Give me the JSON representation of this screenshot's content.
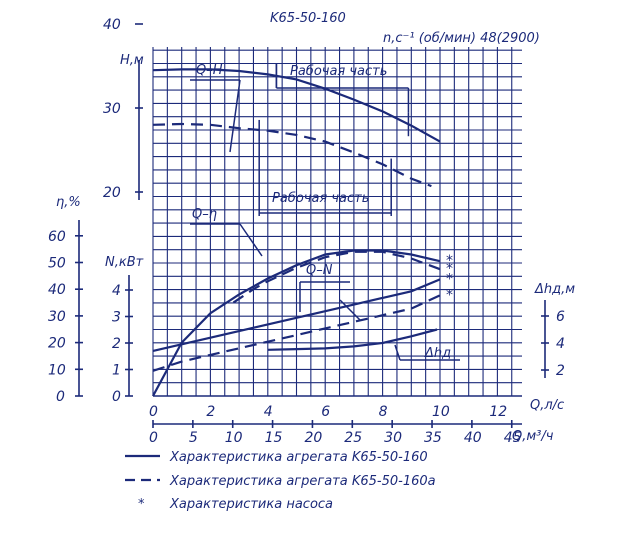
{
  "chart_data": {
    "type": "line",
    "title": "K65-50-160",
    "speed_label": "n,c⁻¹ (об/мин) 48(2900)",
    "color": "#1c2a7a",
    "grid": true,
    "x_axis_q_ls": {
      "label": "Q,л/с",
      "ticks": [
        "0",
        "2",
        "4",
        "6",
        "8",
        "10",
        "12"
      ],
      "range": [
        0,
        12.6
      ]
    },
    "x_axis_q_m3h": {
      "label": "Q,м³/ч",
      "ticks": [
        "0",
        "5",
        "10",
        "15",
        "20",
        "25",
        "30",
        "35",
        "40",
        "45"
      ]
    },
    "axes_left": {
      "H": {
        "label": "H,м",
        "ticks": [
          "20",
          "30",
          "40"
        ],
        "range": [
          15,
          42
        ]
      },
      "eta": {
        "label": "η,%",
        "ticks": [
          "0",
          "10",
          "20",
          "30",
          "40",
          "50",
          "60"
        ],
        "range": [
          0,
          62
        ]
      },
      "N": {
        "label": "N,кВт",
        "ticks": [
          "0",
          "1",
          "2",
          "3",
          "4"
        ],
        "range": [
          0,
          4.6
        ]
      }
    },
    "axis_right": {
      "label": "Δhд,м",
      "ticks": [
        "2",
        "4",
        "6"
      ],
      "range": [
        2,
        7.2
      ]
    },
    "curve_labels": {
      "qh": "Q–H",
      "qeta": "Q–η",
      "qn": "Q–N",
      "dh": "Δhд"
    },
    "work_zone_label": "Рабочая часть",
    "star": "*",
    "series": [
      {
        "curve": "Q-H",
        "style": "solid",
        "x": [
          0,
          1,
          2,
          3,
          4,
          5,
          6,
          7,
          8,
          9,
          10
        ],
        "values": [
          34.5,
          34.6,
          34.6,
          34.4,
          34,
          33.4,
          32.3,
          31,
          29.6,
          27.9,
          26
        ]
      },
      {
        "curve": "Q-H",
        "style": "dashed",
        "x": [
          0,
          1,
          2,
          3,
          4,
          5,
          6,
          7,
          8,
          9,
          9.7
        ],
        "values": [
          28,
          28.1,
          28,
          27.6,
          27.3,
          26.8,
          26,
          24.7,
          23.3,
          21.6,
          20.7
        ]
      },
      {
        "curve": "Q-η",
        "style": "solid",
        "x": [
          0,
          1,
          2,
          3,
          4,
          5,
          6,
          7,
          8,
          9,
          10
        ],
        "values": [
          0,
          20,
          31,
          38,
          44,
          49,
          53,
          54.5,
          54.5,
          53,
          50.5
        ]
      },
      {
        "curve": "Q-η",
        "style": "dashed",
        "x": [
          2.8,
          3.5,
          4,
          5,
          6,
          7,
          8,
          9,
          10
        ],
        "values": [
          35,
          40,
          43,
          48,
          52,
          54,
          54,
          51.5,
          47.5
        ]
      },
      {
        "curve": "Q-N",
        "style": "solid",
        "x": [
          0,
          1,
          2,
          3,
          4,
          5,
          6,
          7,
          8,
          9,
          10
        ],
        "values": [
          1.7,
          1.95,
          2.2,
          2.45,
          2.7,
          2.95,
          3.2,
          3.45,
          3.7,
          3.95,
          4.4
        ]
      },
      {
        "curve": "Q-N",
        "style": "dashed",
        "x": [
          0,
          1,
          2,
          3,
          4,
          5,
          6,
          7,
          8,
          9,
          10
        ],
        "values": [
          0.95,
          1.3,
          1.55,
          1.8,
          2.05,
          2.3,
          2.55,
          2.8,
          3.05,
          3.3,
          3.8
        ]
      },
      {
        "curve": "Δhд",
        "style": "solid",
        "x": [
          4,
          5,
          6,
          7,
          8,
          9,
          9.9
        ],
        "values": [
          3.5,
          3.55,
          3.6,
          3.75,
          4,
          4.5,
          5
        ]
      }
    ],
    "work_zone_solid": {
      "x_start": 4.3,
      "x_end": 8.9
    },
    "work_zone_dashed": {
      "x_start": 3.7,
      "x_end": 8.3
    },
    "legend": [
      {
        "style": "solid",
        "text": "Характеристика агрегата K65-50-160"
      },
      {
        "style": "dashed",
        "text": "Характеристика агрегата K65-50-160а"
      },
      {
        "style": "star",
        "text": "Характеристика насоса"
      }
    ]
  }
}
